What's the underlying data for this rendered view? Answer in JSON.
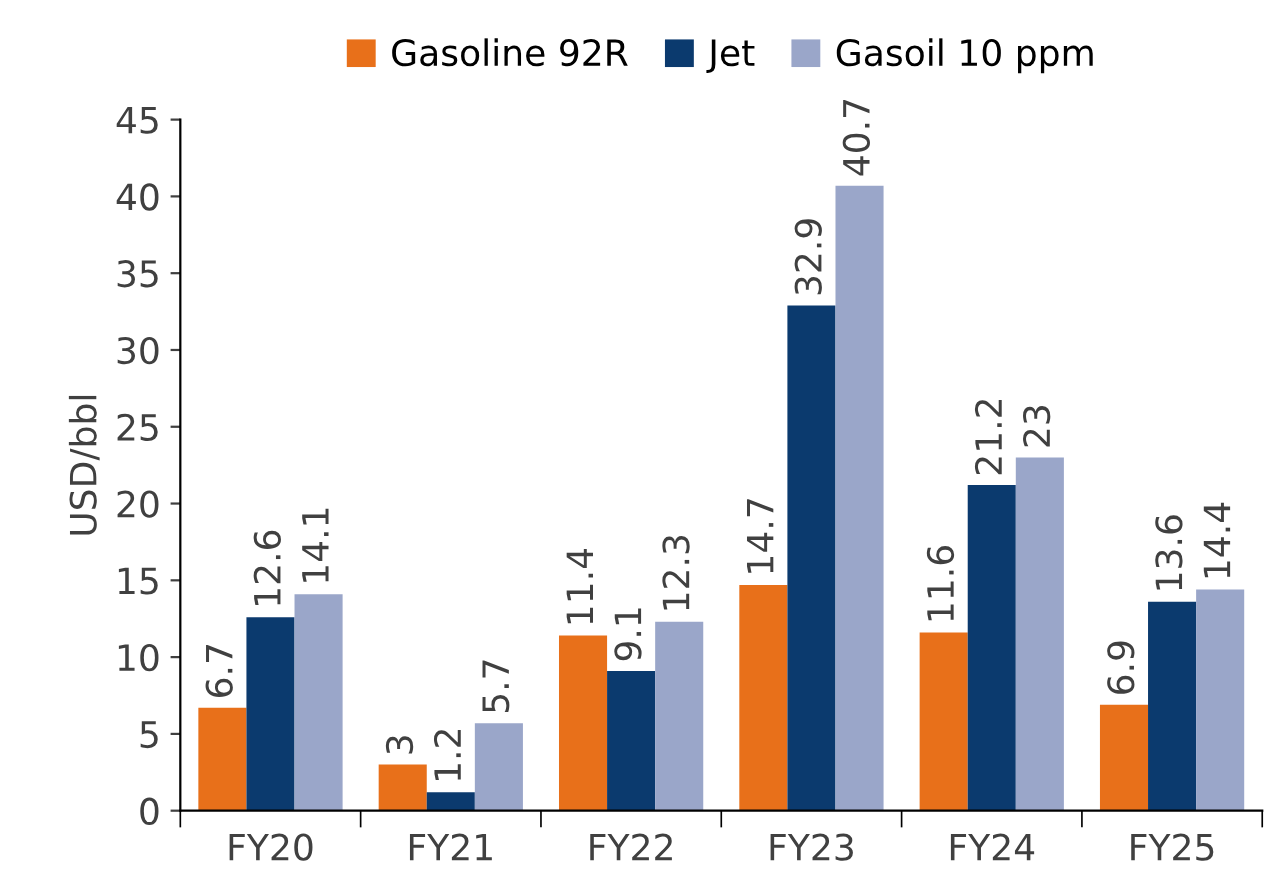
{
  "chart_data": {
    "type": "bar",
    "ylabel": "USD/bbl",
    "categories": [
      "FY20",
      "FY21",
      "FY22",
      "FY23",
      "FY24",
      "FY25"
    ],
    "series": [
      {
        "name": "Gasoline 92R",
        "color": "#e8701a",
        "values": [
          6.7,
          3,
          11.4,
          14.7,
          11.6,
          6.9
        ]
      },
      {
        "name": "Jet",
        "color": "#0b3a6e",
        "values": [
          12.6,
          1.2,
          9.1,
          32.9,
          21.2,
          13.6
        ]
      },
      {
        "name": "Gasoil 10 ppm",
        "color": "#9aa6c9",
        "values": [
          14.1,
          5.7,
          12.3,
          40.7,
          23,
          14.4
        ]
      }
    ],
    "ylim": [
      0,
      45
    ],
    "yticks": [
      0,
      5,
      10,
      15,
      20,
      25,
      30,
      35,
      40,
      45
    ],
    "grid": false,
    "legend": "top",
    "data_labels": true
  }
}
